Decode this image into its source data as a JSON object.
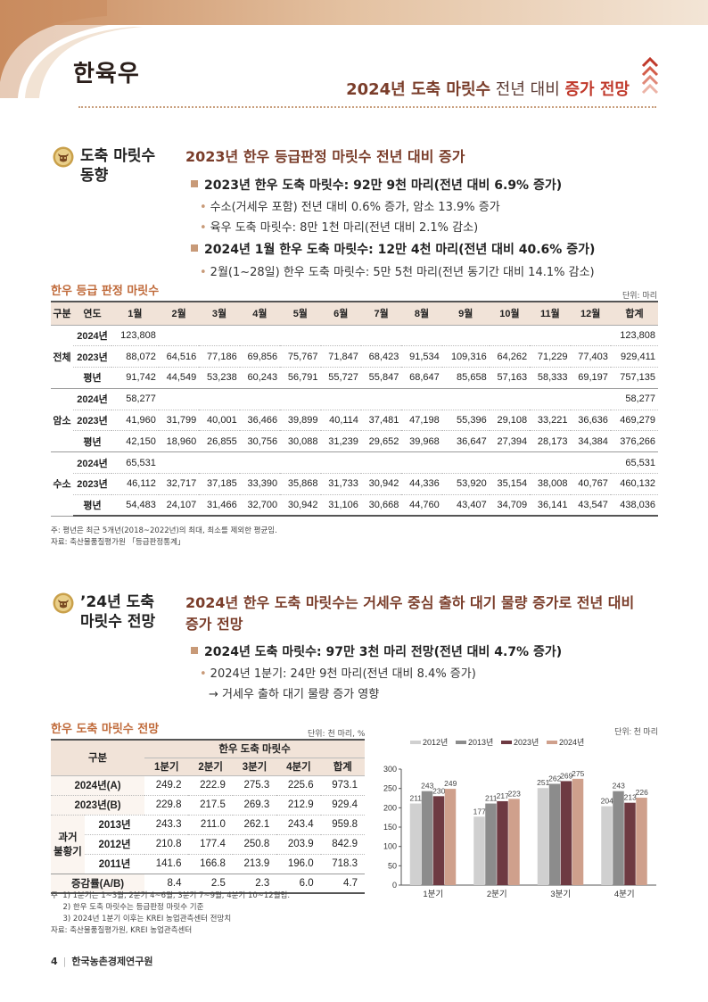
{
  "header": {
    "title": "한육우",
    "subtitle_pre": "2024년 도축 마릿수",
    "subtitle_mid": " 전년 대비 ",
    "subtitle_emph": "증가 전망"
  },
  "section1": {
    "label_line1": "도축 마릿수",
    "label_line2": "동향",
    "heading": "2023년 한우 등급판정 마릿수 전년 대비 증가",
    "bullet1": "2023년 한우 도축 마릿수: 92만 9천 마리(전년 대비 6.9% 증가)",
    "sub1a": "수소(거세우 포함) 전년 대비 0.6% 증가, 암소 13.9% 증가",
    "sub1b": "육우 도축 마릿수: 8만 1천 마리(전년 대비 2.1% 감소)",
    "bullet2": "2024년 1월 한우 도축 마릿수: 12만 4천 마리(전년 대비 40.6% 증가)",
    "sub2a": "2월(1~28일) 한우 도축 마릿수: 5만 5천 마리(전년 동기간 대비 14.1% 감소)"
  },
  "table1": {
    "title": "한우 등급 판정 마릿수",
    "unit": "단위: 마리",
    "headers": [
      "구분",
      "연도",
      "1월",
      "2월",
      "3월",
      "4월",
      "5월",
      "6월",
      "7월",
      "8월",
      "9월",
      "10월",
      "11월",
      "12월",
      "합계"
    ],
    "groups": [
      {
        "name": "전체",
        "rows": [
          {
            "year": "2024년",
            "cells": [
              "123,808",
              "",
              "",
              "",
              "",
              "",
              "",
              "",
              "",
              "",
              "",
              "",
              "123,808"
            ]
          },
          {
            "year": "2023년",
            "cells": [
              "88,072",
              "64,516",
              "77,186",
              "69,856",
              "75,767",
              "71,847",
              "68,423",
              "91,534",
              "109,316",
              "64,262",
              "71,229",
              "77,403",
              "929,411"
            ]
          },
          {
            "year": "평년",
            "cells": [
              "91,742",
              "44,549",
              "53,238",
              "60,243",
              "56,791",
              "55,727",
              "55,847",
              "68,647",
              "85,658",
              "57,163",
              "58,333",
              "69,197",
              "757,135"
            ]
          }
        ]
      },
      {
        "name": "암소",
        "rows": [
          {
            "year": "2024년",
            "cells": [
              "58,277",
              "",
              "",
              "",
              "",
              "",
              "",
              "",
              "",
              "",
              "",
              "",
              "58,277"
            ]
          },
          {
            "year": "2023년",
            "cells": [
              "41,960",
              "31,799",
              "40,001",
              "36,466",
              "39,899",
              "40,114",
              "37,481",
              "47,198",
              "55,396",
              "29,108",
              "33,221",
              "36,636",
              "469,279"
            ]
          },
          {
            "year": "평년",
            "cells": [
              "42,150",
              "18,960",
              "26,855",
              "30,756",
              "30,088",
              "31,239",
              "29,652",
              "39,968",
              "36,647",
              "27,394",
              "28,173",
              "34,384",
              "376,266"
            ]
          }
        ]
      },
      {
        "name": "수소",
        "rows": [
          {
            "year": "2024년",
            "cells": [
              "65,531",
              "",
              "",
              "",
              "",
              "",
              "",
              "",
              "",
              "",
              "",
              "",
              "65,531"
            ]
          },
          {
            "year": "2023년",
            "cells": [
              "46,112",
              "32,717",
              "37,185",
              "33,390",
              "35,868",
              "31,733",
              "30,942",
              "44,336",
              "53,920",
              "35,154",
              "38,008",
              "40,767",
              "460,132"
            ]
          },
          {
            "year": "평년",
            "cells": [
              "54,483",
              "24,107",
              "31,466",
              "32,700",
              "30,942",
              "31,106",
              "30,668",
              "44,760",
              "43,407",
              "34,709",
              "36,141",
              "43,547",
              "438,036"
            ]
          }
        ]
      }
    ],
    "note": "주: 평년은 최근 5개년(2018~2022년)의 최대, 최소를 제외한 평균임.",
    "source": "자료: 축산물품질평가원 「등급판정통계」"
  },
  "section2": {
    "label_line1": "’24년 도축",
    "label_line2": "마릿수 전망",
    "heading_line1": "2024년 한우 도축 마릿수는 거세우 중심 출하 대기 물량 증가로 전년 대비",
    "heading_line2": "증가 전망",
    "bullet1": "2024년 도축 마릿수: 97만 3천 마리 전망(전년 대비 4.7% 증가)",
    "sub1a": "2024년 1분기: 24만 9천 마리(전년 대비 8.4% 증가)",
    "sub1b": "→ 거세우 출하 대기 물량 증가 영향"
  },
  "table2": {
    "title": "한우 도축 마릿수 전망",
    "unit": "단위: 천 마리, %",
    "col_group": "한우 도축 마릿수",
    "label_col": "구분",
    "headers": [
      "1분기",
      "2분기",
      "3분기",
      "4분기",
      "합계"
    ],
    "rows": [
      {
        "label": "2024년(A)",
        "cells": [
          "249.2",
          "222.9",
          "275.3",
          "225.6",
          "973.1"
        ]
      },
      {
        "label": "2023년(B)",
        "cells": [
          "229.8",
          "217.5",
          "269.3",
          "212.9",
          "929.4"
        ]
      }
    ],
    "past_label_line1": "과거",
    "past_label_line2": "불황기",
    "past_rows": [
      {
        "label": "2013년",
        "cells": [
          "243.3",
          "211.0",
          "262.1",
          "243.4",
          "959.8"
        ]
      },
      {
        "label": "2012년",
        "cells": [
          "210.8",
          "177.4",
          "250.8",
          "203.9",
          "842.9"
        ]
      },
      {
        "label": "2011년",
        "cells": [
          "141.6",
          "166.8",
          "213.9",
          "196.0",
          "718.3"
        ]
      }
    ],
    "change_row": {
      "label": "증감률(A/B)",
      "cells": [
        "8.4",
        "2.5",
        "2.3",
        "6.0",
        "4.7"
      ]
    },
    "notes": [
      "주  1) 1분기는 1~3월, 2분기 4~6월, 3분기 7~9월, 4분기 10~12월임.",
      "     2) 한우 도축 마릿수는 등급판정 마릿수 기준",
      "     3) 2024년 1분기 이후는 KREI 농업관측센터 전망치"
    ],
    "source": "자료: 축산물품질평가원, KREI 농업관측센터"
  },
  "chart_data": {
    "type": "bar",
    "unit": "단위: 천 마리",
    "categories": [
      "1분기",
      "2분기",
      "3분기",
      "4분기"
    ],
    "series": [
      {
        "name": "2012년",
        "color": "#d0d0d0",
        "values": [
          211,
          177,
          251,
          204
        ]
      },
      {
        "name": "2013년",
        "color": "#8c8c8c",
        "values": [
          243,
          211,
          262,
          243
        ]
      },
      {
        "name": "2023년",
        "color": "#6e3a42",
        "values": [
          230,
          217,
          269,
          213
        ]
      },
      {
        "name": "2024년",
        "color": "#cfa08c",
        "values": [
          249,
          223,
          275,
          226
        ]
      }
    ],
    "ylim": [
      0,
      300
    ],
    "yticks": [
      0,
      50,
      100,
      150,
      200,
      250,
      300
    ],
    "legend": "top"
  },
  "footer": {
    "page": "4",
    "org": "한국농촌경제연구원"
  }
}
